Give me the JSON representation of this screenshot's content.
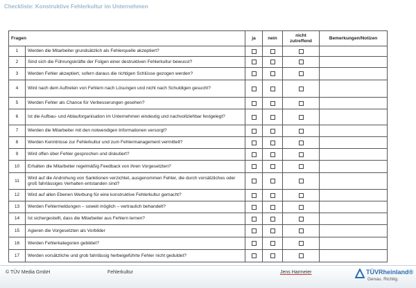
{
  "header": {
    "title": "Checkliste: Konstruktive Fehlerkultur im Unternehmen"
  },
  "table": {
    "columns": [
      "Fragen",
      "ja",
      "nein",
      "nicht zutreffend",
      "Bemerkungen/Notizen"
    ],
    "rows": [
      [
        "1",
        "Werden die Mitarbeiter grundsätzlich als Fehlerquelle akzeptiert?"
      ],
      [
        "2",
        "Sind sich die Führungskräfte der Folgen einer destruktiven Fehlerkultur  bewusst?"
      ],
      [
        "3",
        "Werden Fehler akzeptiert, sofern daraus die richtigen Schlüsse gezogen werden?"
      ],
      [
        "4",
        "Wird nach dem Auftreten von Fehlern nach Lösungen und nicht nach Schuldigen gesucht?"
      ],
      [
        "5",
        "Werden Fehler als Chance für Verbesserungen gesehen?"
      ],
      [
        "6",
        "Ist die Aufbau- und Ablauforganisation im Unternehmen eindeutig und nachvollziehbar festgelegt?"
      ],
      [
        "7",
        "Werden die Mitarbeiter mit den notwendigen Informationen versorgt?"
      ],
      [
        "8",
        "Werden Kenntnisse zur Fehlerkultur und zum Fehlermanagement vermittelt?"
      ],
      [
        "9",
        "Wird offen über Fehler gesprochen und diskutiert?"
      ],
      [
        "10",
        "Erhalten die Mitarbeiter regelmäßig Feedback von ihren Vorgesetzten?"
      ],
      [
        "11",
        "Wird auf die Androhung von Sanktionen verzichtet, ausgenommen Fehler, die durch vorsätzliches oder groß fahrlässiges Verhalten entstanden sind?"
      ],
      [
        "12",
        "Wird auf allen Ebenen Werbung für eine konstruktive Fehlerkultur gemacht?"
      ],
      [
        "13",
        "Werden Fehlermeldungen – soweit möglich – vertraulich behandelt?"
      ],
      [
        "14",
        "Ist sichergestellt, dass die Mitarbeiter aus Fehlern lernen?"
      ],
      [
        "15",
        "Agieren die Vorgesetzten als Vorbilder"
      ],
      [
        "16",
        "Werden Fehlerkategorien gebildet?"
      ],
      [
        "17",
        "Werden vorsätzliche und grob fahrlässig herbeigeführte Fehler nicht geduldet?"
      ]
    ]
  },
  "footer": {
    "copyright": "© TÜV Media GmbH",
    "topic": "Fehlerkultur",
    "author": "Jens Harmeier",
    "brand": "TÜVRheinland®",
    "slogan": "Genau. Richtig."
  }
}
